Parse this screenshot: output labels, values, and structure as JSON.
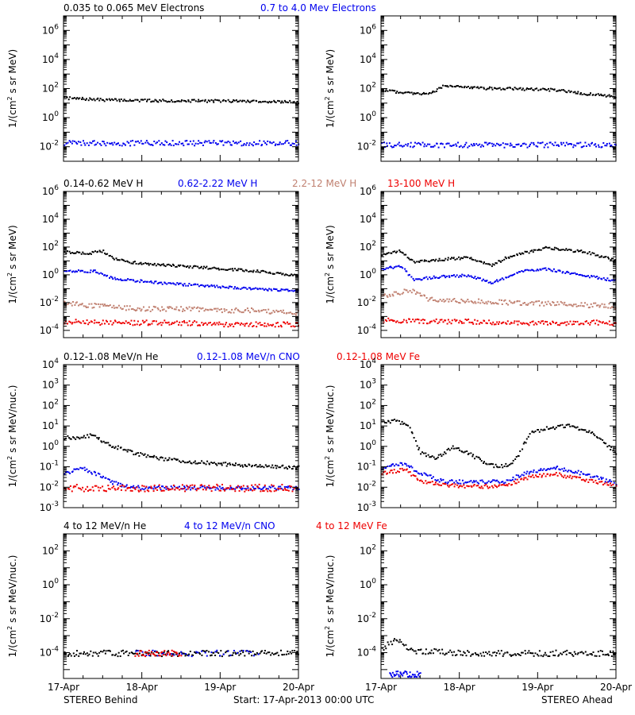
{
  "footer": {
    "left": "STEREO Behind",
    "center": "Start: 17-Apr-2013 00:00 UTC",
    "right": "STEREO Ahead"
  },
  "x_axis": {
    "tick_labels": [
      "17-Apr",
      "18-Apr",
      "19-Apr",
      "20-Apr"
    ],
    "range_days": [
      0,
      3
    ]
  },
  "chart_data": [
    {
      "type": "scatter",
      "id": "electrons-behind",
      "ylabel": "1/(cm2 s sr MeV)",
      "yscale": "log",
      "ylim": [
        0.001,
        10000000
      ],
      "ytick_exponents": [
        -2,
        0,
        2,
        4,
        6
      ],
      "series_labels": [
        {
          "name": "0.035 to 0.065 MeV Electrons",
          "color": "#000000"
        },
        {
          "name": "0.7 to 4.0 Mev Electrons",
          "color": "#0000ee"
        }
      ],
      "series": [
        {
          "name": "0.035 to 0.065 MeV Electrons",
          "color": "#000000",
          "x": [
            0,
            0.5,
            1,
            1.5,
            2,
            2.5,
            3
          ],
          "y": [
            25,
            19,
            17,
            16,
            16,
            15,
            13
          ]
        },
        {
          "name": "0.7 to 4.0 Mev Electrons",
          "color": "#0000ee",
          "x": [
            0,
            1,
            2,
            3
          ],
          "y": [
            0.02,
            0.02,
            0.02,
            0.02
          ]
        }
      ]
    },
    {
      "type": "scatter",
      "id": "electrons-ahead",
      "ylabel": "1/(cm2 s sr MeV)",
      "yscale": "log",
      "ylim": [
        0.001,
        10000000
      ],
      "ytick_exponents": [
        -2,
        0,
        2,
        4,
        6
      ],
      "series_labels": [],
      "series": [
        {
          "name": "0.035 to 0.065 MeV Electrons",
          "color": "#000000",
          "x": [
            0,
            0.3,
            0.6,
            0.8,
            1.2,
            1.7,
            2.2,
            2.6,
            3
          ],
          "y": [
            80,
            60,
            45,
            180,
            120,
            110,
            90,
            50,
            30
          ]
        },
        {
          "name": "0.7 to 4.0 Mev Electrons",
          "color": "#0000ee",
          "x": [
            0,
            1.5,
            3
          ],
          "y": [
            0.015,
            0.015,
            0.015
          ]
        }
      ]
    },
    {
      "type": "scatter",
      "id": "protons-behind",
      "ylabel": "1/(cm2 s sr MeV)",
      "yscale": "log",
      "ylim": [
        3e-05,
        1000000
      ],
      "ytick_exponents": [
        -4,
        -2,
        0,
        2,
        4,
        6
      ],
      "series_labels": [
        {
          "name": "0.14-0.62 MeV H",
          "color": "#000000"
        },
        {
          "name": "0.62-2.22 MeV H",
          "color": "#0000ee"
        },
        {
          "name": "2.2-12 MeV H",
          "color": "#c08070"
        },
        {
          "name": "13-100 MeV H",
          "color": "#ee0000"
        }
      ],
      "series": [
        {
          "name": "0.14-0.62 MeV H",
          "color": "#000000",
          "x": [
            0,
            0.3,
            0.5,
            0.6,
            0.8,
            1,
            1.5,
            2,
            2.5,
            3
          ],
          "y": [
            50,
            40,
            55,
            20,
            10,
            7,
            5,
            3,
            2,
            1
          ]
        },
        {
          "name": "0.62-2.22 MeV H",
          "color": "#0000ee",
          "x": [
            0,
            0.4,
            0.6,
            0.8,
            1.2,
            1.7,
            2.2,
            2.6,
            3
          ],
          "y": [
            2,
            2,
            0.7,
            0.5,
            0.3,
            0.2,
            0.13,
            0.1,
            0.08
          ]
        },
        {
          "name": "2.2-12 MeV H",
          "color": "#c08070",
          "x": [
            0,
            0.5,
            1,
            1.5,
            2,
            2.5,
            3
          ],
          "y": [
            0.01,
            0.006,
            0.004,
            0.004,
            0.003,
            0.003,
            0.002
          ]
        },
        {
          "name": "13-100 MeV H",
          "color": "#ee0000",
          "x": [
            0,
            0.5,
            1,
            1.5,
            2,
            2.5,
            3
          ],
          "y": [
            0.0005,
            0.0004,
            0.0004,
            0.0004,
            0.0003,
            0.0003,
            0.0003
          ]
        }
      ]
    },
    {
      "type": "scatter",
      "id": "protons-ahead",
      "ylabel": "1/(cm2 s sr MeV)",
      "yscale": "log",
      "ylim": [
        3e-05,
        1000000
      ],
      "ytick_exponents": [
        -4,
        -2,
        0,
        2,
        4,
        6
      ],
      "series_labels": [],
      "series": [
        {
          "name": "0.14-0.62 MeV H",
          "color": "#000000",
          "x": [
            0,
            0.25,
            0.4,
            0.8,
            1.1,
            1.4,
            1.6,
            1.8,
            2.1,
            2.6,
            3
          ],
          "y": [
            30,
            60,
            10,
            15,
            20,
            5,
            20,
            40,
            100,
            50,
            12
          ]
        },
        {
          "name": "0.62-2.22 MeV H",
          "color": "#0000ee",
          "x": [
            0,
            0.25,
            0.4,
            0.8,
            1.1,
            1.4,
            1.6,
            1.8,
            2.1,
            2.6,
            3
          ],
          "y": [
            3,
            5,
            0.5,
            0.9,
            1,
            0.3,
            0.8,
            2,
            3,
            1,
            0.4
          ]
        },
        {
          "name": "2.2-12 MeV H",
          "color": "#c08070",
          "x": [
            0,
            0.2,
            0.35,
            0.6,
            1,
            1.5,
            2,
            2.5,
            3
          ],
          "y": [
            0.03,
            0.05,
            0.1,
            0.02,
            0.015,
            0.012,
            0.01,
            0.008,
            0.006
          ]
        },
        {
          "name": "13-100 MeV H",
          "color": "#ee0000",
          "x": [
            0,
            0.5,
            1,
            1.5,
            2,
            2.5,
            3
          ],
          "y": [
            0.0006,
            0.0005,
            0.0005,
            0.0004,
            0.0004,
            0.0004,
            0.0004
          ]
        }
      ]
    },
    {
      "type": "scatter",
      "id": "heavy-low-behind",
      "ylabel": "1/(cm2 s sr MeV/nuc.)",
      "yscale": "log",
      "ylim": [
        0.001,
        10000
      ],
      "ytick_exponents": [
        -3,
        -2,
        -1,
        0,
        1,
        2,
        3,
        4
      ],
      "series_labels": [
        {
          "name": "0.12-1.08 MeV/n He",
          "color": "#000000"
        },
        {
          "name": "0.12-1.08 MeV/n CNO",
          "color": "#0000ee"
        },
        {
          "name": "0.12-1.08 MeV Fe",
          "color": "#ee0000"
        }
      ],
      "series": [
        {
          "name": "0.12-1.08 MeV/n He",
          "color": "#000000",
          "x": [
            0,
            0.2,
            0.35,
            0.6,
            0.9,
            1.2,
            1.5,
            2,
            2.5,
            3
          ],
          "y": [
            3,
            2.5,
            4,
            1.2,
            0.5,
            0.3,
            0.2,
            0.15,
            0.12,
            0.1
          ]
        },
        {
          "name": "0.12-1.08 MeV/n CNO",
          "color": "#0000ee",
          "x": [
            0,
            0.2,
            0.4,
            0.6,
            0.8,
            1,
            2,
            3
          ],
          "y": [
            0.05,
            0.1,
            0.05,
            0.02,
            0.012,
            0.01,
            0.01,
            0.01
          ]
        },
        {
          "name": "0.12-1.08 MeV Fe",
          "color": "#ee0000",
          "x": [
            0,
            1,
            2,
            3
          ],
          "y": [
            0.01,
            0.01,
            0.01,
            0.01
          ]
        }
      ]
    },
    {
      "type": "scatter",
      "id": "heavy-low-ahead",
      "ylabel": "1/(cm2 s sr MeV/nuc.)",
      "yscale": "log",
      "ylim": [
        0.001,
        10000
      ],
      "ytick_exponents": [
        -3,
        -2,
        -1,
        0,
        1,
        2,
        3,
        4
      ],
      "series_labels": [],
      "series": [
        {
          "name": "0.12-1.08 MeV/n He",
          "color": "#000000",
          "x": [
            0,
            0.2,
            0.35,
            0.5,
            0.7,
            0.9,
            1.1,
            1.3,
            1.5,
            1.7,
            1.9,
            2.1,
            2.4,
            2.7,
            3
          ],
          "y": [
            15,
            20,
            10,
            0.5,
            0.3,
            1,
            0.5,
            0.2,
            0.1,
            0.2,
            5,
            8,
            12,
            5,
            0.5
          ]
        },
        {
          "name": "0.12-1.08 MeV/n CNO",
          "color": "#0000ee",
          "x": [
            0,
            0.3,
            0.5,
            0.8,
            1.2,
            1.6,
            1.8,
            2.2,
            2.5,
            2.8,
            3
          ],
          "y": [
            0.1,
            0.15,
            0.05,
            0.02,
            0.02,
            0.02,
            0.05,
            0.1,
            0.06,
            0.03,
            0.015
          ]
        },
        {
          "name": "0.12-1.08 MeV Fe",
          "color": "#ee0000",
          "x": [
            0,
            0.3,
            0.5,
            1,
            1.6,
            1.8,
            2.2,
            2.5,
            3
          ],
          "y": [
            0.05,
            0.08,
            0.02,
            0.012,
            0.012,
            0.03,
            0.05,
            0.03,
            0.012
          ]
        }
      ]
    },
    {
      "type": "scatter",
      "id": "heavy-high-behind",
      "ylabel": "1/(cm2 s sr MeV/nuc.)",
      "yscale": "log",
      "ylim": [
        3e-06,
        1000
      ],
      "ytick_exponents": [
        -4,
        -2,
        0,
        2
      ],
      "series_labels": [
        {
          "name": "4 to 12 MeV/n He",
          "color": "#000000"
        },
        {
          "name": "4 to 12 MeV/n CNO",
          "color": "#0000ee"
        },
        {
          "name": "4 to 12 MeV Fe",
          "color": "#ee0000"
        }
      ],
      "series": [
        {
          "name": "4 to 12 MeV/n He",
          "color": "#000000",
          "x": [
            0,
            1,
            2,
            3
          ],
          "y": [
            0.0001,
            0.0001,
            0.0001,
            0.0001
          ]
        },
        {
          "name": "4 to 12 MeV/n CNO",
          "color": "#0000ee",
          "x": [
            0.9,
            2.5
          ],
          "y": [
            0.0001,
            0.0001
          ]
        },
        {
          "name": "4 to 12 MeV Fe",
          "color": "#ee0000",
          "x": [
            0.9,
            1.5
          ],
          "y": [
            0.0001,
            0.0001
          ]
        }
      ]
    },
    {
      "type": "scatter",
      "id": "heavy-high-ahead",
      "ylabel": "1/(cm2 s sr MeV/nuc.)",
      "yscale": "log",
      "ylim": [
        3e-06,
        1000
      ],
      "ytick_exponents": [
        -4,
        -2,
        0,
        2
      ],
      "series_labels": [],
      "series": [
        {
          "name": "4 to 12 MeV/n He",
          "color": "#000000",
          "x": [
            0,
            0.2,
            0.4,
            1,
            2,
            3
          ],
          "y": [
            0.0002,
            0.0006,
            0.00015,
            0.0001,
            0.0001,
            0.0001
          ]
        },
        {
          "name": "4 to 12 MeV/n CNO",
          "color": "#0000ee",
          "x": [
            0.1,
            0.5
          ],
          "y": [
            6e-06,
            6e-06
          ]
        },
        {
          "name": "4 to 12 MeV Fe",
          "color": "#ee0000",
          "x": [],
          "y": []
        }
      ]
    }
  ]
}
